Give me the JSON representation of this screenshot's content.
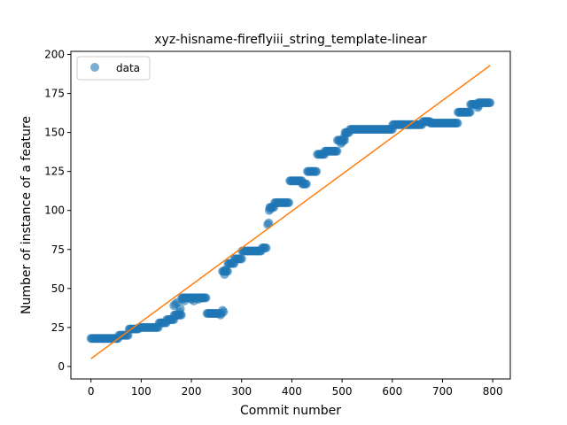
{
  "chart_data": {
    "type": "scatter",
    "title": "xyz-hisname-fireflyiii_string_template-linear",
    "xlabel": "Commit number",
    "ylabel": "Number of instance of a feature",
    "xlim": [
      -40,
      835
    ],
    "ylim": [
      -8,
      202
    ],
    "x_ticks": [
      0,
      100,
      200,
      300,
      400,
      500,
      600,
      700,
      800
    ],
    "y_ticks": [
      0,
      25,
      50,
      75,
      100,
      125,
      150,
      175,
      200
    ],
    "legend": {
      "position": "top-left",
      "label": "data"
    },
    "colors": {
      "data": "#1f77b4",
      "fit": "#ff7f0e"
    },
    "series": [
      {
        "name": "data",
        "segments": [
          {
            "x_start": 0,
            "x_end": 55,
            "y": 18,
            "step": 2
          },
          {
            "x_start": 56,
            "x_end": 75,
            "y": 20,
            "step": 2
          },
          {
            "x_start": 76,
            "x_end": 95,
            "y": 24,
            "step": 2
          },
          {
            "x_start": 96,
            "x_end": 135,
            "y": 25,
            "step": 2
          },
          {
            "x_start": 136,
            "x_end": 150,
            "y": 28,
            "step": 2
          },
          {
            "x_start": 151,
            "x_end": 165,
            "y": 30,
            "step": 2
          },
          {
            "x_start": 166,
            "x_end": 180,
            "y": 33,
            "step": 2
          },
          {
            "x_start": 181,
            "x_end": 230,
            "y": 44,
            "step": 2
          },
          {
            "x_start": 231,
            "x_end": 255,
            "y": 34,
            "step": 2
          },
          {
            "x_start": 262,
            "x_end": 272,
            "y": 61,
            "step": 2
          },
          {
            "x_start": 273,
            "x_end": 285,
            "y": 66,
            "step": 2
          },
          {
            "x_start": 286,
            "x_end": 300,
            "y": 69,
            "step": 2
          },
          {
            "x_start": 301,
            "x_end": 340,
            "y": 74,
            "step": 2
          },
          {
            "x_start": 341,
            "x_end": 350,
            "y": 76,
            "step": 2
          },
          {
            "x_start": 356,
            "x_end": 365,
            "y": 102,
            "step": 2
          },
          {
            "x_start": 366,
            "x_end": 395,
            "y": 105,
            "step": 2
          },
          {
            "x_start": 396,
            "x_end": 420,
            "y": 119,
            "step": 2
          },
          {
            "x_start": 421,
            "x_end": 430,
            "y": 117,
            "step": 2
          },
          {
            "x_start": 431,
            "x_end": 450,
            "y": 125,
            "step": 2
          },
          {
            "x_start": 451,
            "x_end": 465,
            "y": 136,
            "step": 2
          },
          {
            "x_start": 466,
            "x_end": 490,
            "y": 138,
            "step": 2
          },
          {
            "x_start": 491,
            "x_end": 505,
            "y": 145,
            "step": 2
          },
          {
            "x_start": 506,
            "x_end": 515,
            "y": 150,
            "step": 2
          },
          {
            "x_start": 516,
            "x_end": 600,
            "y": 152,
            "step": 2
          },
          {
            "x_start": 601,
            "x_end": 660,
            "y": 155,
            "step": 2
          },
          {
            "x_start": 661,
            "x_end": 675,
            "y": 157,
            "step": 2
          },
          {
            "x_start": 676,
            "x_end": 730,
            "y": 156,
            "step": 2
          },
          {
            "x_start": 731,
            "x_end": 755,
            "y": 163,
            "step": 2
          },
          {
            "x_start": 756,
            "x_end": 770,
            "y": 168,
            "step": 2
          },
          {
            "x_start": 771,
            "x_end": 795,
            "y": 169,
            "step": 2
          }
        ],
        "points": [
          [
            165,
            39
          ],
          [
            168,
            40
          ],
          [
            172,
            41
          ],
          [
            176,
            35
          ],
          [
            178,
            37
          ],
          [
            182,
            43
          ],
          [
            186,
            42
          ],
          [
            200,
            43
          ],
          [
            205,
            42
          ],
          [
            214,
            43
          ],
          [
            222,
            44
          ],
          [
            258,
            33
          ],
          [
            260,
            34
          ],
          [
            262,
            36
          ],
          [
            264,
            35
          ],
          [
            266,
            59
          ],
          [
            268,
            62
          ],
          [
            352,
            91
          ],
          [
            354,
            92
          ],
          [
            355,
            100
          ],
          [
            357,
            101
          ],
          [
            498,
            143
          ],
          [
            500,
            144
          ],
          [
            504,
            147
          ],
          [
            508,
            149
          ],
          [
            770,
            166
          ],
          [
            772,
            167
          ]
        ]
      },
      {
        "name": "",
        "type": "line",
        "x": [
          0,
          795
        ],
        "y": [
          5,
          193
        ]
      }
    ]
  }
}
